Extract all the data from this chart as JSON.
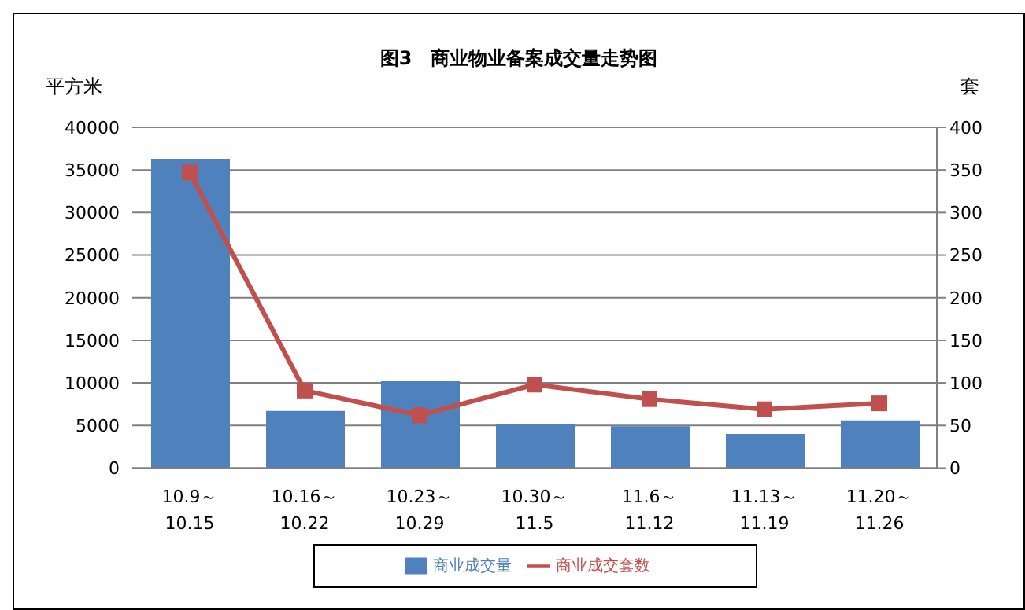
{
  "chart_data": {
    "type": "bar",
    "title": "图3　商业物业备案成交量走势图",
    "ylabel": "平方米",
    "y2label": "套",
    "categories": [
      "10.9～10.15",
      "10.16～10.22",
      "10.23～10.29",
      "10.30～11.5",
      "11.6～11.12",
      "11.13～11.19",
      "11.20～11.26"
    ],
    "series": [
      {
        "name": "商业成交量",
        "color": "#4f81bd",
        "values": [
          36300,
          6700,
          10200,
          5200,
          4900,
          4000,
          5600
        ]
      },
      {
        "name": "商业成交套数",
        "type": "line",
        "axis": "y2",
        "color": "#c0504d",
        "marker": "square",
        "values": [
          347,
          91,
          62,
          98,
          81,
          69,
          76
        ]
      }
    ],
    "ylim": [
      0,
      40000
    ],
    "yticks": [
      0,
      5000,
      10000,
      15000,
      20000,
      25000,
      30000,
      35000,
      40000
    ],
    "y2lim": [
      0,
      400
    ],
    "y2ticks": [
      0,
      50,
      100,
      150,
      200,
      250,
      300,
      350,
      400
    ],
    "grid": "y",
    "legend": "bottom"
  }
}
